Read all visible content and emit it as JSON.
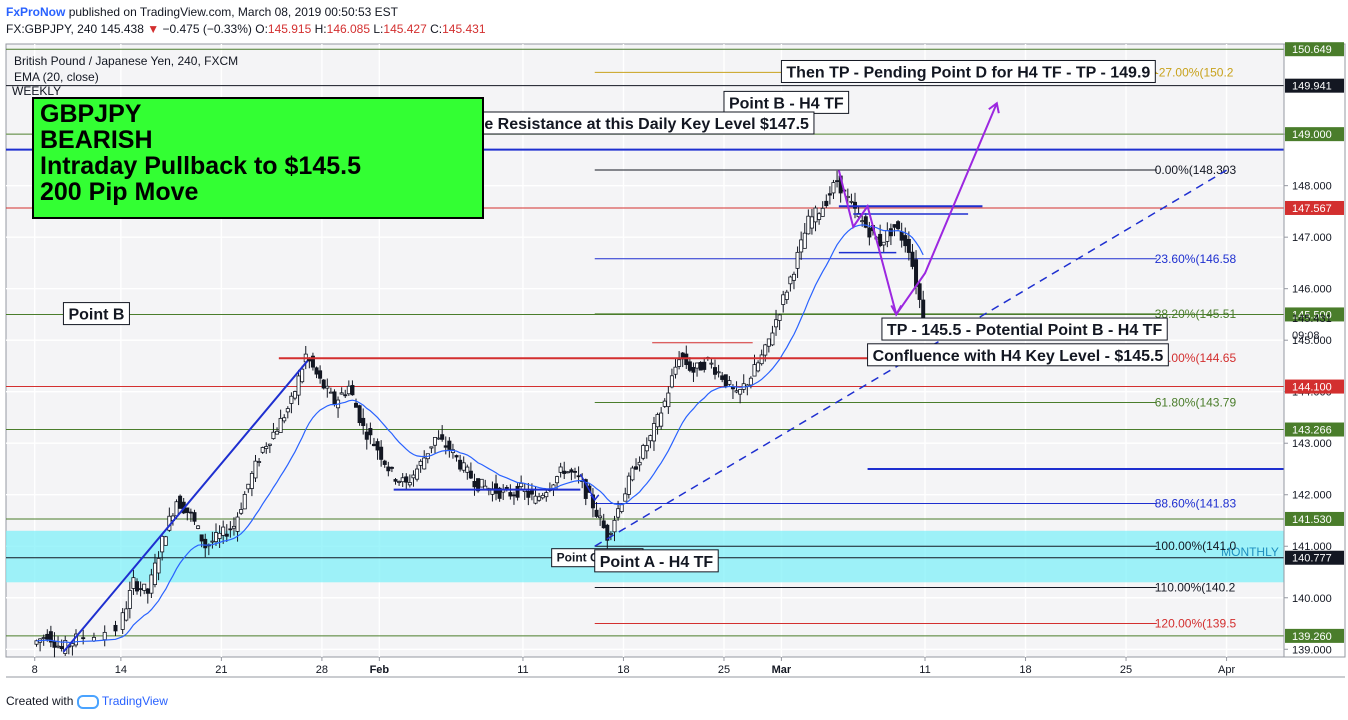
{
  "header": {
    "brand": "FxProNow",
    "published": "published on TradingView.com, March 08, 2019 00:50:53 EST",
    "symbol": "FX:GBPJPY, 240",
    "last": "145.438",
    "change": "−0.475 (−0.33%)",
    "o_label": "O:",
    "o": "145.915",
    "h_label": "H:",
    "h": "146.085",
    "l_label": "L:",
    "l": "145.427",
    "c_label": "C:",
    "c": "145.431"
  },
  "legend": {
    "title": "British Pound / Japanese Yen, 240, FXCM",
    "indicator": "EMA (20, close)",
    "weekly": "WEEKLY"
  },
  "banner": {
    "lines": [
      "GBPJPY",
      "BEARISH",
      "Intraday Pullback to $145.5",
      "200 Pip Move"
    ]
  },
  "footer": {
    "created_with": "Created with",
    "tv": "TradingView"
  },
  "colors": {
    "candle": "#131722",
    "ema": "#2962ff",
    "fib_blue": "#1e2fd0",
    "fib_green": "#4a7d2b",
    "fib_red": "#d32f2f",
    "fib_gold": "#c8a21c",
    "purple": "#9c27e0",
    "zone": "#80f0f8",
    "banner_bg": "#33ff33"
  },
  "chart_data": {
    "type": "candlestick",
    "title": "British Pound / Japanese Yen, 240, FXCM",
    "ylim": [
      138.85,
      150.75
    ],
    "y_ticks": [
      139,
      140,
      141,
      142,
      143,
      144,
      145,
      146,
      147,
      148,
      149
    ],
    "y_tick_labels": [
      "139.000",
      "140.000",
      "141.000",
      "142.000",
      "143.000",
      "144.000",
      "145.000",
      "146.000",
      "147.000",
      "148.000",
      "149.000"
    ],
    "x_start": "2019-01-06",
    "x_end": "2019-04-05",
    "x_ticks": [
      {
        "date": "2019-01-08",
        "label": "8",
        "bold": false
      },
      {
        "date": "2019-01-14",
        "label": "14",
        "bold": false
      },
      {
        "date": "2019-01-21",
        "label": "21",
        "bold": false
      },
      {
        "date": "2019-01-28",
        "label": "28",
        "bold": false
      },
      {
        "date": "2019-02-01",
        "label": "Feb",
        "bold": true
      },
      {
        "date": "2019-02-11",
        "label": "11",
        "bold": false
      },
      {
        "date": "2019-02-18",
        "label": "18",
        "bold": false
      },
      {
        "date": "2019-02-25",
        "label": "25",
        "bold": false
      },
      {
        "date": "2019-03-01",
        "label": "Mar",
        "bold": true
      },
      {
        "date": "2019-03-11",
        "label": "11",
        "bold": false
      },
      {
        "date": "2019-03-18",
        "label": "18",
        "bold": false
      },
      {
        "date": "2019-03-25",
        "label": "25",
        "bold": false
      },
      {
        "date": "2019-04-01",
        "label": "Apr",
        "bold": false
      }
    ],
    "price_path": [
      [
        "2019-01-08",
        139.1
      ],
      [
        "2019-01-09",
        139.3
      ],
      [
        "2019-01-10",
        139.0
      ],
      [
        "2019-01-11",
        139.2
      ],
      [
        "2019-01-14",
        139.4
      ],
      [
        "2019-01-15",
        140.3
      ],
      [
        "2019-01-16",
        140.1
      ],
      [
        "2019-01-17",
        141.1
      ],
      [
        "2019-01-18",
        141.9
      ],
      [
        "2019-01-19",
        141.6
      ],
      [
        "2019-01-20",
        141.0
      ],
      [
        "2019-01-21",
        141.2
      ],
      [
        "2019-01-22",
        141.4
      ],
      [
        "2019-01-23",
        142.2
      ],
      [
        "2019-01-24",
        142.9
      ],
      [
        "2019-01-25",
        143.3
      ],
      [
        "2019-01-26",
        143.8
      ],
      [
        "2019-01-27",
        144.7
      ],
      [
        "2019-01-28",
        144.2
      ],
      [
        "2019-01-29",
        143.8
      ],
      [
        "2019-01-30",
        144.1
      ],
      [
        "2019-01-31",
        143.3
      ],
      [
        "2019-02-01",
        142.9
      ],
      [
        "2019-02-02",
        142.4
      ],
      [
        "2019-02-03",
        142.2
      ],
      [
        "2019-02-04",
        142.6
      ],
      [
        "2019-02-05",
        143.1
      ],
      [
        "2019-02-06",
        142.9
      ],
      [
        "2019-02-07",
        142.5
      ],
      [
        "2019-02-08",
        142.2
      ],
      [
        "2019-02-09",
        142.1
      ],
      [
        "2019-02-10",
        142.0
      ],
      [
        "2019-02-11",
        142.1
      ],
      [
        "2019-02-12",
        141.9
      ],
      [
        "2019-02-13",
        142.2
      ],
      [
        "2019-02-14",
        142.5
      ],
      [
        "2019-02-15",
        142.3
      ],
      [
        "2019-02-16",
        141.8
      ],
      [
        "2019-02-17",
        141.2
      ],
      [
        "2019-02-18",
        141.9
      ],
      [
        "2019-02-19",
        142.6
      ],
      [
        "2019-02-20",
        143.1
      ],
      [
        "2019-02-21",
        143.8
      ],
      [
        "2019-02-22",
        144.7
      ],
      [
        "2019-02-23",
        144.4
      ],
      [
        "2019-02-24",
        144.6
      ],
      [
        "2019-02-25",
        144.3
      ],
      [
        "2019-02-26",
        143.9
      ],
      [
        "2019-02-27",
        144.3
      ],
      [
        "2019-02-28",
        144.8
      ],
      [
        "2019-03-01",
        145.6
      ],
      [
        "2019-03-02",
        146.4
      ],
      [
        "2019-03-03",
        147.3
      ],
      [
        "2019-03-04",
        147.6
      ],
      [
        "2019-03-05",
        148.1
      ],
      [
        "2019-03-06",
        147.6
      ],
      [
        "2019-03-07",
        147.2
      ],
      [
        "2019-03-08",
        146.9
      ],
      [
        "2019-03-09",
        147.2
      ],
      [
        "2019-03-10",
        146.8
      ],
      [
        "2019-03-11",
        145.44
      ]
    ],
    "series": [
      {
        "name": "EMA (20, close)",
        "color": "#2962ff"
      }
    ],
    "fib_levels": [
      {
        "label": "0.00%(148.303",
        "value": 148.303,
        "color": "#131722"
      },
      {
        "label": "23.60%(146.58",
        "value": 146.58,
        "color": "#1e2fd0"
      },
      {
        "label": "38.20%(145.51",
        "value": 145.51,
        "color": "#4a7d2b"
      },
      {
        "label": "50.00%(144.65",
        "value": 144.65,
        "color": "#d32f2f"
      },
      {
        "label": "61.80%(143.79",
        "value": 143.79,
        "color": "#4a7d2b"
      },
      {
        "label": "88.60%(141.83",
        "value": 141.83,
        "color": "#1e2fd0"
      },
      {
        "label": "100.00%(141.0",
        "value": 141.0,
        "color": "#131722"
      },
      {
        "label": "110.00%(140.2",
        "value": 140.2,
        "color": "#131722"
      },
      {
        "label": "120.00%(139.5",
        "value": 139.5,
        "color": "#d32f2f"
      },
      {
        "label": "-27.00%(150.2",
        "value": 150.2,
        "color": "#c8a21c"
      }
    ],
    "horizontal_levels": [
      {
        "value": 150.649,
        "label": "150.649",
        "color": "#4a7d2b"
      },
      {
        "value": 149.941,
        "label": "149.941",
        "color": "#131722"
      },
      {
        "value": 149.0,
        "label": "149.000",
        "color": "#4a7d2b"
      },
      {
        "value": 148.7,
        "label": "",
        "color": "#1e2fd0"
      },
      {
        "value": 147.567,
        "label": "147.567",
        "color": "#d32f2f"
      },
      {
        "value": 145.5,
        "label": "145.500",
        "color": "#4a7d2b"
      },
      {
        "value": 144.1,
        "label": "144.100",
        "color": "#d32f2f"
      },
      {
        "value": 143.266,
        "label": "143.266",
        "color": "#4a7d2b"
      },
      {
        "value": 141.53,
        "label": "141.530",
        "color": "#4a7d2b"
      },
      {
        "value": 140.777,
        "label": "140.777",
        "color": "#131722"
      },
      {
        "value": 139.26,
        "label": "139.260",
        "color": "#4a7d2b"
      }
    ],
    "price_scale_extras": [
      {
        "value": 145.431,
        "label": "145.431"
      },
      {
        "value": 145.1,
        "label": "09:08"
      }
    ],
    "monthly_zone": {
      "from": 140.3,
      "to": 141.3,
      "label": "MONTHLY"
    },
    "annotations": [
      {
        "text": "Then TP - Pending Point D for H4 TF - TP - 149.9",
        "date": "2019-03-01",
        "value": 150.1
      },
      {
        "text": "Point B - H4 TF",
        "date": "2019-02-25",
        "value": 149.5
      },
      {
        "text": "Possible Resistance at this Daily Key Level $147.5",
        "date": "2019-02-04",
        "value": 149.1
      },
      {
        "text": "Point B",
        "date": "2019-01-10",
        "value": 145.4
      },
      {
        "text": "TP - 145.5 - Potential Point B - H4 TF",
        "date": "2019-03-08",
        "value": 145.1
      },
      {
        "text": "Confluence with H4 Key Level - $145.5",
        "date": "2019-03-07",
        "value": 144.6
      },
      {
        "text": "Point C - Daily",
        "date": "2019-02-13",
        "value": 140.7
      },
      {
        "text": "Point A - H4 TF",
        "date": "2019-02-16",
        "value": 140.6
      }
    ]
  }
}
